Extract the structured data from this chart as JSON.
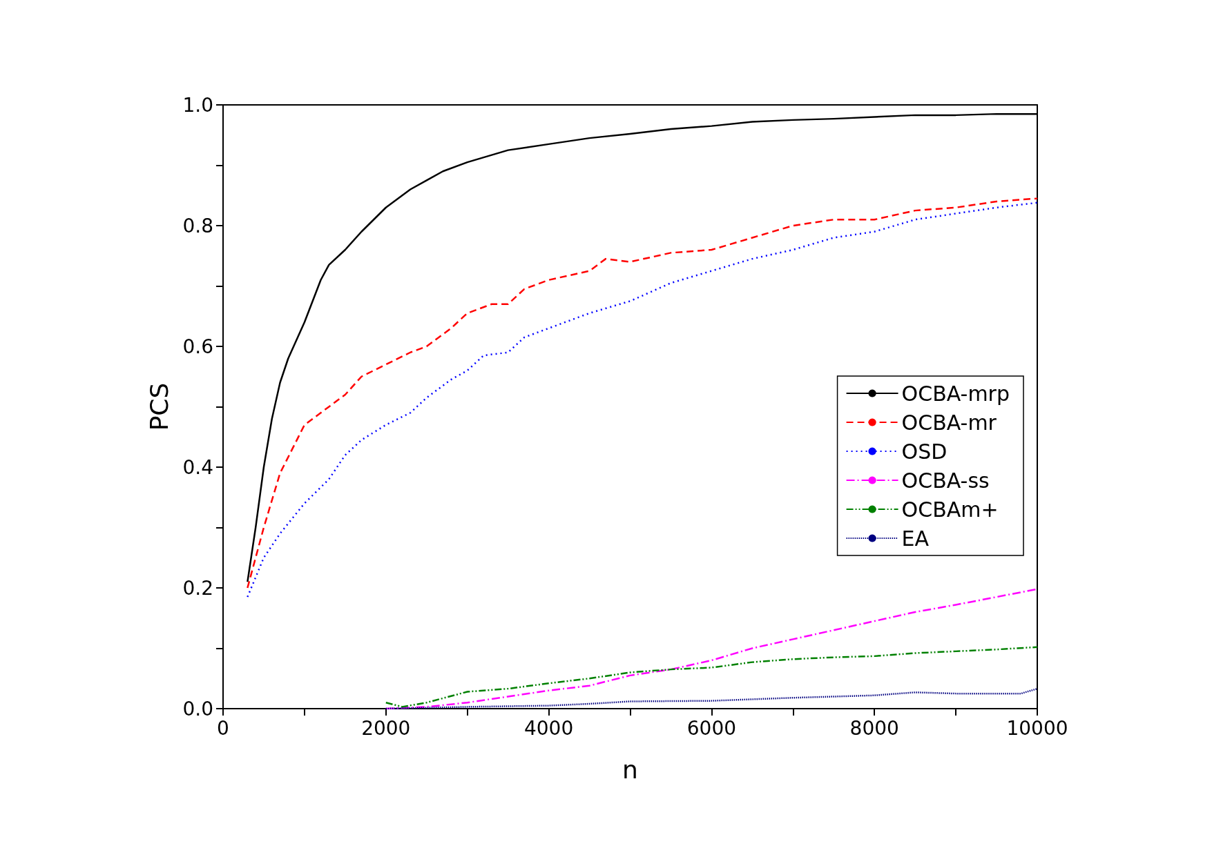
{
  "chart_data": {
    "type": "line",
    "xlabel": "n",
    "ylabel": "PCS",
    "xlim": [
      0,
      10000
    ],
    "xticks": [
      0,
      {
        "value": 1000,
        "label": null
      },
      2000,
      {
        "value": 3000,
        "label": null
      },
      4000,
      {
        "value": 5000,
        "label": null
      },
      6000,
      {
        "value": 7000,
        "label": null
      },
      8000,
      {
        "value": 9000,
        "label": null
      },
      10000
    ],
    "ylim": [
      0,
      1
    ],
    "yticks": [
      {
        "value": 0,
        "label": "0.0"
      },
      {
        "value": 0.1,
        "label": null
      },
      {
        "value": 0.2,
        "label": "0.2"
      },
      {
        "value": 0.3,
        "label": null
      },
      {
        "value": 0.4,
        "label": "0.4"
      },
      {
        "value": 0.5,
        "label": null
      },
      {
        "value": 0.6,
        "label": "0.6"
      },
      {
        "value": 0.7,
        "label": null
      },
      {
        "value": 0.8,
        "label": "0.8"
      },
      {
        "value": 0.9,
        "label": null
      },
      {
        "value": 1,
        "label": "1.0"
      }
    ],
    "grid": false,
    "legend": "right",
    "marker": "none",
    "series": [
      {
        "name": "OCBA-mrp",
        "color": "#000000",
        "line_style": "solid",
        "x": [
          300,
          400,
          500,
          600,
          700,
          800,
          1000,
          1200,
          1300,
          1500,
          1700,
          2000,
          2300,
          2500,
          2700,
          3000,
          3500,
          4000,
          4500,
          5000,
          5500,
          6000,
          6500,
          7000,
          7500,
          8000,
          8500,
          9000,
          9500,
          10000
        ],
        "values": [
          0.21,
          0.3,
          0.4,
          0.48,
          0.54,
          0.58,
          0.64,
          0.71,
          0.735,
          0.76,
          0.79,
          0.83,
          0.86,
          0.875,
          0.89,
          0.905,
          0.925,
          0.935,
          0.945,
          0.952,
          0.96,
          0.965,
          0.972,
          0.975,
          0.977,
          0.98,
          0.983,
          0.983,
          0.985,
          0.985
        ]
      },
      {
        "name": "OCBA-mr",
        "color": "#ff0000",
        "line_style": "dashed",
        "x": [
          300,
          500,
          700,
          1000,
          1200,
          1500,
          1700,
          2000,
          2300,
          2500,
          2800,
          3000,
          3300,
          3500,
          3700,
          4000,
          4500,
          4700,
          5000,
          5500,
          6000,
          6500,
          7000,
          7500,
          8000,
          8500,
          9000,
          9500,
          10000
        ],
        "values": [
          0.2,
          0.3,
          0.39,
          0.47,
          0.49,
          0.52,
          0.55,
          0.57,
          0.59,
          0.6,
          0.63,
          0.655,
          0.67,
          0.67,
          0.695,
          0.71,
          0.725,
          0.745,
          0.74,
          0.755,
          0.76,
          0.78,
          0.8,
          0.81,
          0.81,
          0.825,
          0.83,
          0.84,
          0.845
        ]
      },
      {
        "name": "OSD",
        "color": "#0000ff",
        "line_style": "dotted",
        "x": [
          300,
          500,
          700,
          1000,
          1300,
          1500,
          1700,
          2000,
          2300,
          2500,
          2800,
          3000,
          3200,
          3500,
          3700,
          4000,
          4500,
          5000,
          5500,
          6000,
          6500,
          7000,
          7500,
          8000,
          8500,
          9000,
          9500,
          10000
        ],
        "values": [
          0.185,
          0.25,
          0.29,
          0.34,
          0.38,
          0.42,
          0.445,
          0.47,
          0.49,
          0.515,
          0.545,
          0.56,
          0.585,
          0.59,
          0.615,
          0.63,
          0.655,
          0.675,
          0.705,
          0.725,
          0.745,
          0.76,
          0.78,
          0.79,
          0.81,
          0.82,
          0.83,
          0.838
        ]
      },
      {
        "name": "OCBA-ss",
        "color": "#ff00ff",
        "line_style": "dashdot",
        "x": [
          2000,
          2500,
          3000,
          3500,
          4000,
          4500,
          5000,
          5500,
          6000,
          6500,
          7000,
          7500,
          8000,
          8500,
          9000,
          9500,
          10000
        ],
        "values": [
          0,
          0.003,
          0.01,
          0.02,
          0.03,
          0.038,
          0.055,
          0.065,
          0.08,
          0.1,
          0.115,
          0.13,
          0.145,
          0.16,
          0.172,
          0.185,
          0.198
        ]
      },
      {
        "name": "OCBAm+",
        "color": "#008000",
        "line_style": "dashdotdot",
        "x": [
          2000,
          2200,
          2500,
          3000,
          3500,
          4000,
          4500,
          5000,
          5500,
          6000,
          6500,
          7000,
          7500,
          8000,
          8500,
          9000,
          9500,
          10000
        ],
        "values": [
          0.01,
          0.003,
          0.01,
          0.028,
          0.033,
          0.042,
          0.05,
          0.06,
          0.065,
          0.068,
          0.077,
          0.082,
          0.085,
          0.087,
          0.092,
          0.095,
          0.098,
          0.102
        ]
      },
      {
        "name": "EA",
        "color": "#000080",
        "line_style": "densedotted",
        "x": [
          2000,
          3000,
          4000,
          4500,
          5000,
          6000,
          7000,
          8000,
          8500,
          9000,
          9800,
          10000
        ],
        "values": [
          0,
          0.003,
          0.005,
          0.008,
          0.012,
          0.013,
          0.018,
          0.022,
          0.027,
          0.025,
          0.025,
          0.033
        ]
      }
    ]
  }
}
